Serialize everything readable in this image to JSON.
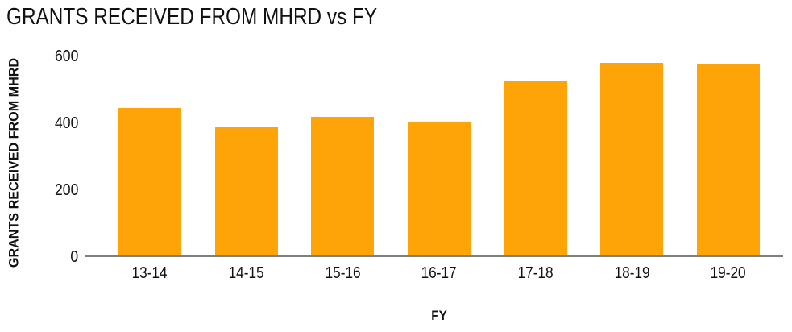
{
  "chart_data": {
    "type": "bar",
    "title": "GRANTS RECEIVED FROM MHRD vs FY",
    "categories": [
      "13-14",
      "14-15",
      "15-16",
      "16-17",
      "17-18",
      "18-19",
      "19-20"
    ],
    "values": [
      445,
      390,
      420,
      405,
      525,
      580,
      575
    ],
    "xlabel": "FY",
    "ylabel": "GRANTS RECEIVED FROM MHRD",
    "ylim": [
      0,
      600
    ],
    "yticks": [
      0,
      200,
      400,
      600
    ],
    "grid": false,
    "legend": false,
    "colors": {
      "bar": "#FFA408",
      "axis_line": "#7F7F7F",
      "text": "#111111",
      "background": "#FFFFFF"
    }
  }
}
